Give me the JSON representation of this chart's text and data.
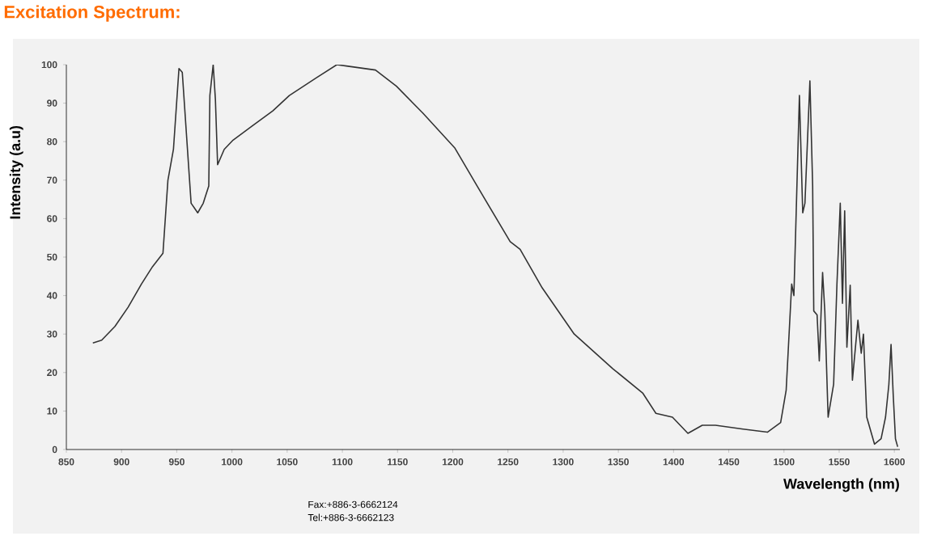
{
  "chart_data": {
    "type": "line",
    "title": "Excitation Spectrum:",
    "xlabel": "Wavelength (nm)",
    "ylabel": "Intensity (a.u)",
    "annotations": [
      "Fax:+886-3-6662124",
      "Tel:+886-3-6662123"
    ],
    "color": "#333333",
    "x": [
      874,
      882,
      894,
      906,
      918,
      928,
      937.5,
      942,
      947,
      952,
      955,
      959,
      963,
      969,
      974,
      979,
      980,
      983,
      985,
      987,
      993,
      1001,
      1018,
      1037,
      1052,
      1076,
      1095,
      1105,
      1130,
      1149,
      1173,
      1202,
      1222,
      1252,
      1261,
      1281,
      1310,
      1345,
      1372,
      1384,
      1399,
      1413,
      1426,
      1438,
      1463,
      1485,
      1497,
      1502,
      1507,
      1509,
      1514,
      1517,
      1519,
      1523.5,
      1526,
      1527,
      1530,
      1532,
      1535,
      1537,
      1540,
      1545,
      1548,
      1551,
      1553,
      1555,
      1557,
      1560,
      1562,
      1567,
      1570,
      1572,
      1575,
      1582,
      1588,
      1592,
      1595,
      1597,
      1599,
      1601,
      1603
    ],
    "values": [
      27.7,
      28.4,
      32,
      37,
      43,
      47.5,
      51,
      70,
      78,
      99,
      98,
      81,
      64,
      61.5,
      64,
      68.5,
      92,
      100,
      91,
      74,
      78,
      80.4,
      84,
      88,
      92,
      96.5,
      100,
      99.6,
      98.6,
      94.4,
      87.4,
      78.3,
      68.5,
      54,
      52,
      42,
      30,
      21,
      14.7,
      9.4,
      8.4,
      4.2,
      6.3,
      6.3,
      5.3,
      4.5,
      7,
      15.4,
      43,
      40,
      92,
      61.5,
      64,
      95.8,
      68.5,
      36,
      35,
      23,
      46,
      36,
      8.4,
      17,
      43,
      64,
      38,
      62,
      26.6,
      42.7,
      18,
      33.6,
      25,
      30,
      8.4,
      1.4,
      2.8,
      8.4,
      16.8,
      27.3,
      14,
      2.8,
      0.7
    ],
    "xlim": [
      850,
      1605
    ],
    "ylim": [
      0,
      100
    ],
    "xticks": [
      850,
      900,
      950,
      1000,
      1050,
      1100,
      1150,
      1200,
      1250,
      1300,
      1350,
      1400,
      1450,
      1500,
      1550,
      1600
    ],
    "yticks": [
      0,
      10,
      20,
      30,
      40,
      50,
      60,
      70,
      80,
      90,
      100
    ]
  }
}
